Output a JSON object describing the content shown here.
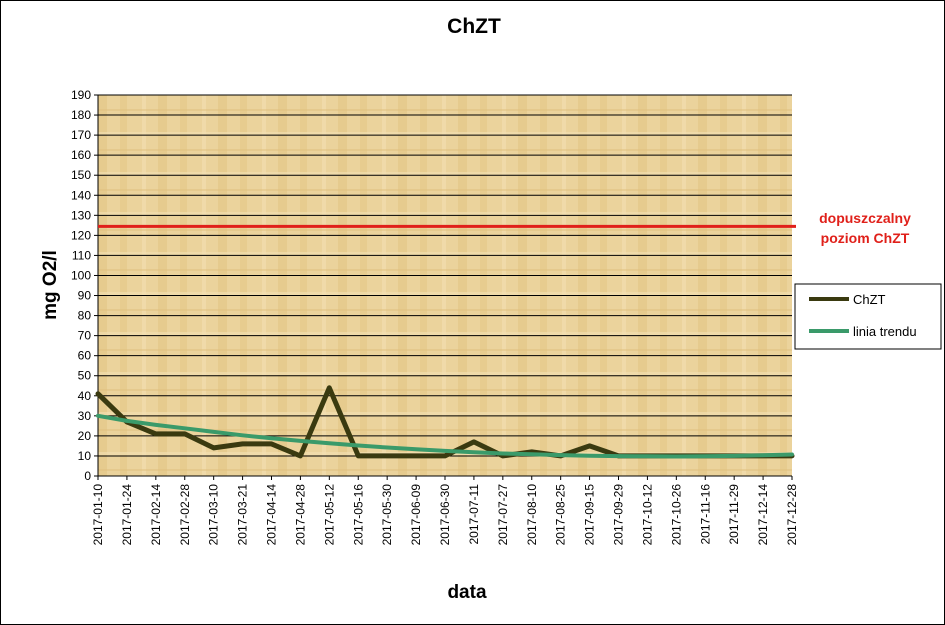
{
  "chart_data": {
    "type": "line",
    "title": "ChZT",
    "xlabel": "data",
    "ylabel": "mg O2/l",
    "ylim": [
      0,
      190
    ],
    "y_step": 10,
    "grid": true,
    "legend_position": "right",
    "x": [
      "2017-01-10",
      "2017-01-24",
      "2017-02-14",
      "2017-02-28",
      "2017-03-10",
      "2017-03-21",
      "2017-04-14",
      "2017-04-28",
      "2017-05-12",
      "2017-05-16",
      "2017-05-30",
      "2017-06-09",
      "2017-06-30",
      "2017-07-11",
      "2017-07-27",
      "2017-08-10",
      "2017-08-25",
      "2017-09-15",
      "2017-09-29",
      "2017-10-12",
      "2017-10-26",
      "2017-11-16",
      "2017-11-29",
      "2017-12-14",
      "2017-12-28"
    ],
    "series": [
      {
        "name": "ChZT",
        "color": "#3a3a10",
        "values": [
          41,
          27,
          21,
          21,
          14,
          16,
          16,
          10,
          44,
          10,
          10,
          10,
          10,
          17,
          10,
          12,
          10,
          15,
          10,
          10,
          10,
          10,
          10,
          10,
          10
        ]
      },
      {
        "name": "linia trendu",
        "color": "#3a9a6a",
        "values": [
          30,
          27.5,
          25.5,
          23.8,
          22,
          20.3,
          18.8,
          17.5,
          16.3,
          15.2,
          14.2,
          13.3,
          12.5,
          11.8,
          11.2,
          10.8,
          10.4,
          10.1,
          9.9,
          9.8,
          9.7,
          9.8,
          10,
          10.3,
          10.7
        ]
      }
    ],
    "reference_line": {
      "value": 124.5,
      "color": "#e0201a",
      "label_lines": [
        "dopuszczalny",
        "poziom ChZT"
      ]
    }
  }
}
